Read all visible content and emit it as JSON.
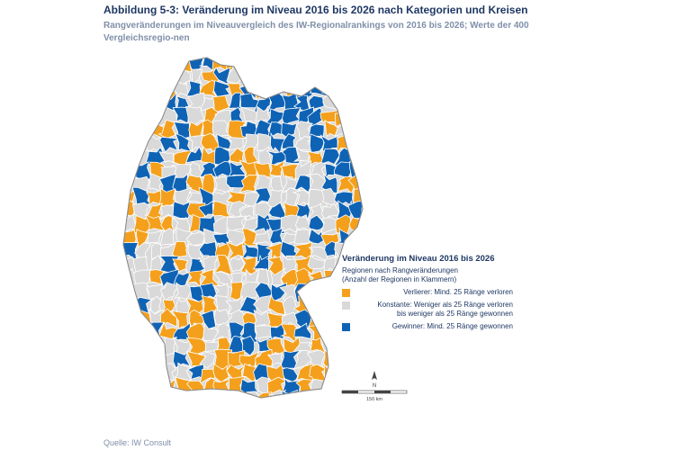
{
  "title": "Abbildung 5-3: Veränderung im Niveau 2016 bis 2026 nach Kategorien und Kreisen",
  "subtitle": "Rangveränderungen im Niveauvergleich des IW-Regionalrankings von 2016 bis 2026; Werte der 400 Vergleichsregio-nen",
  "legend": {
    "title": "Veränderung im Niveau 2016 bis 2026",
    "subtitle_line1": "Regionen nach Rangveränderungen",
    "subtitle_line2": "(Anzahl der Regionen in Klammern)",
    "items": [
      {
        "label_line1": "Verlierer: Mind. 25 Ränge verloren",
        "label_line2": "",
        "color": "#f4a01c"
      },
      {
        "label_line1": "Konstante: Weniger als 25 Ränge verloren",
        "label_line2": "bis weniger als 25 Ränge gewonnen",
        "color": "#d9d9d9"
      },
      {
        "label_line1": "Gewinner: Mind. 25 Ränge gewonnen",
        "label_line2": "",
        "color": "#0f63b5"
      }
    ]
  },
  "scale": {
    "label": "150 km",
    "north_label": "N"
  },
  "source": "Quelle: IW Consult",
  "colors": {
    "loser": "#f4a01c",
    "constant": "#d9d9d9",
    "winner": "#0f63b5",
    "border": "#ffffff"
  }
}
